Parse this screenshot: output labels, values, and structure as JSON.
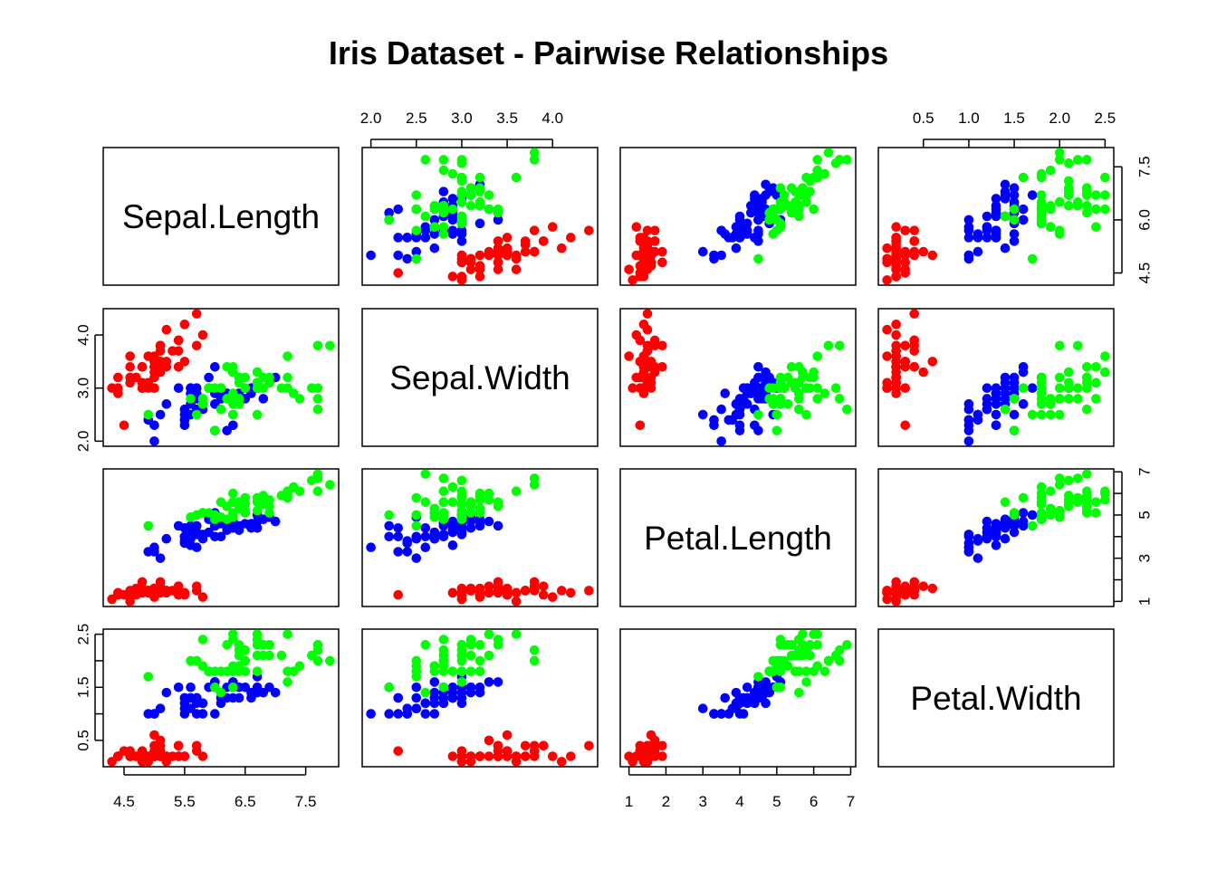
{
  "chart_data": {
    "type": "scatter",
    "title": "Iris Dataset - Pairwise Relationships",
    "variables": [
      "Sepal.Length",
      "Sepal.Width",
      "Petal.Length",
      "Petal.Width"
    ],
    "species_colors": {
      "setosa": "#ff0000",
      "versicolor": "#0000ff",
      "virginica": "#00ff00"
    },
    "axes": {
      "Sepal.Length": {
        "range": [
          4.3,
          7.9
        ],
        "ticks": [
          4.5,
          5.5,
          6.5,
          7.5
        ],
        "tick_labels": [
          "4.5",
          "5.5",
          "6.5",
          "7.5"
        ],
        "side_ticks": [
          4.5,
          6.0,
          7.5
        ],
        "side_tick_labels": [
          "4.5",
          "6.0",
          "7.5"
        ]
      },
      "Sepal.Width": {
        "range": [
          2.0,
          4.4
        ],
        "ticks": [
          2.0,
          2.5,
          3.0,
          3.5,
          4.0
        ],
        "tick_labels": [
          "2.0",
          "2.5",
          "3.0",
          "3.5",
          "4.0"
        ],
        "side_ticks": [
          2.0,
          3.0,
          4.0
        ],
        "side_tick_labels": [
          "2.0",
          "3.0",
          "4.0"
        ]
      },
      "Petal.Length": {
        "range": [
          1.0,
          6.9
        ],
        "ticks": [
          1,
          2,
          3,
          4,
          5,
          6,
          7
        ],
        "tick_labels": [
          "1",
          "2",
          "3",
          "4",
          "5",
          "6",
          "7"
        ],
        "side_ticks": [
          1,
          2,
          3,
          4,
          5,
          6,
          7
        ],
        "side_tick_labels": [
          "1",
          "",
          "3",
          "",
          "5",
          "",
          "7"
        ]
      },
      "Petal.Width": {
        "range": [
          0.1,
          2.5
        ],
        "ticks": [
          0.5,
          1.0,
          1.5,
          2.0,
          2.5
        ],
        "tick_labels": [
          "0.5",
          "1.0",
          "1.5",
          "2.0",
          "2.5"
        ],
        "side_ticks": [
          0.5,
          1.0,
          1.5,
          2.0,
          2.5
        ],
        "side_tick_labels": [
          "0.5",
          "",
          "1.5",
          "",
          "2.5"
        ]
      }
    },
    "observations": [
      [
        5.1,
        3.5,
        1.4,
        0.2,
        0
      ],
      [
        4.9,
        3.0,
        1.4,
        0.2,
        0
      ],
      [
        4.7,
        3.2,
        1.3,
        0.2,
        0
      ],
      [
        4.6,
        3.1,
        1.5,
        0.2,
        0
      ],
      [
        5.0,
        3.6,
        1.4,
        0.2,
        0
      ],
      [
        5.4,
        3.9,
        1.7,
        0.4,
        0
      ],
      [
        4.6,
        3.4,
        1.4,
        0.3,
        0
      ],
      [
        5.0,
        3.4,
        1.5,
        0.2,
        0
      ],
      [
        4.4,
        2.9,
        1.4,
        0.2,
        0
      ],
      [
        4.9,
        3.1,
        1.5,
        0.1,
        0
      ],
      [
        5.4,
        3.7,
        1.5,
        0.2,
        0
      ],
      [
        4.8,
        3.4,
        1.6,
        0.2,
        0
      ],
      [
        4.8,
        3.0,
        1.4,
        0.1,
        0
      ],
      [
        4.3,
        3.0,
        1.1,
        0.1,
        0
      ],
      [
        5.8,
        4.0,
        1.2,
        0.2,
        0
      ],
      [
        5.7,
        4.4,
        1.5,
        0.4,
        0
      ],
      [
        5.4,
        3.9,
        1.3,
        0.4,
        0
      ],
      [
        5.1,
        3.5,
        1.4,
        0.3,
        0
      ],
      [
        5.7,
        3.8,
        1.7,
        0.3,
        0
      ],
      [
        5.1,
        3.8,
        1.5,
        0.3,
        0
      ],
      [
        5.4,
        3.4,
        1.7,
        0.2,
        0
      ],
      [
        5.1,
        3.7,
        1.5,
        0.4,
        0
      ],
      [
        4.6,
        3.6,
        1.0,
        0.2,
        0
      ],
      [
        5.1,
        3.3,
        1.7,
        0.5,
        0
      ],
      [
        4.8,
        3.4,
        1.9,
        0.2,
        0
      ],
      [
        5.0,
        3.0,
        1.6,
        0.2,
        0
      ],
      [
        5.0,
        3.4,
        1.6,
        0.4,
        0
      ],
      [
        5.2,
        3.5,
        1.5,
        0.2,
        0
      ],
      [
        5.2,
        3.4,
        1.4,
        0.2,
        0
      ],
      [
        4.7,
        3.2,
        1.6,
        0.2,
        0
      ],
      [
        4.8,
        3.1,
        1.6,
        0.2,
        0
      ],
      [
        5.4,
        3.4,
        1.5,
        0.4,
        0
      ],
      [
        5.2,
        4.1,
        1.5,
        0.1,
        0
      ],
      [
        5.5,
        4.2,
        1.4,
        0.2,
        0
      ],
      [
        4.9,
        3.1,
        1.5,
        0.2,
        0
      ],
      [
        5.0,
        3.2,
        1.2,
        0.2,
        0
      ],
      [
        5.5,
        3.5,
        1.3,
        0.2,
        0
      ],
      [
        4.9,
        3.6,
        1.4,
        0.1,
        0
      ],
      [
        4.4,
        3.0,
        1.3,
        0.2,
        0
      ],
      [
        5.1,
        3.4,
        1.5,
        0.2,
        0
      ],
      [
        5.0,
        3.5,
        1.3,
        0.3,
        0
      ],
      [
        4.5,
        2.3,
        1.3,
        0.3,
        0
      ],
      [
        4.4,
        3.2,
        1.3,
        0.2,
        0
      ],
      [
        5.0,
        3.5,
        1.6,
        0.6,
        0
      ],
      [
        5.1,
        3.8,
        1.9,
        0.4,
        0
      ],
      [
        4.8,
        3.0,
        1.4,
        0.3,
        0
      ],
      [
        5.1,
        3.8,
        1.6,
        0.2,
        0
      ],
      [
        4.6,
        3.2,
        1.4,
        0.2,
        0
      ],
      [
        5.3,
        3.7,
        1.5,
        0.2,
        0
      ],
      [
        5.0,
        3.3,
        1.4,
        0.2,
        0
      ],
      [
        7.0,
        3.2,
        4.7,
        1.4,
        1
      ],
      [
        6.4,
        3.2,
        4.5,
        1.5,
        1
      ],
      [
        6.9,
        3.1,
        4.9,
        1.5,
        1
      ],
      [
        5.5,
        2.3,
        4.0,
        1.3,
        1
      ],
      [
        6.5,
        2.8,
        4.6,
        1.5,
        1
      ],
      [
        5.7,
        2.8,
        4.5,
        1.3,
        1
      ],
      [
        6.3,
        3.3,
        4.7,
        1.6,
        1
      ],
      [
        4.9,
        2.4,
        3.3,
        1.0,
        1
      ],
      [
        6.6,
        2.9,
        4.6,
        1.3,
        1
      ],
      [
        5.2,
        2.7,
        3.9,
        1.4,
        1
      ],
      [
        5.0,
        2.0,
        3.5,
        1.0,
        1
      ],
      [
        5.9,
        3.0,
        4.2,
        1.5,
        1
      ],
      [
        6.0,
        2.2,
        4.0,
        1.0,
        1
      ],
      [
        6.1,
        2.9,
        4.7,
        1.4,
        1
      ],
      [
        5.6,
        2.9,
        3.6,
        1.3,
        1
      ],
      [
        6.7,
        3.1,
        4.4,
        1.4,
        1
      ],
      [
        5.6,
        3.0,
        4.5,
        1.5,
        1
      ],
      [
        5.8,
        2.7,
        4.1,
        1.0,
        1
      ],
      [
        6.2,
        2.2,
        4.5,
        1.5,
        1
      ],
      [
        5.6,
        2.5,
        3.9,
        1.1,
        1
      ],
      [
        5.9,
        3.2,
        4.8,
        1.8,
        1
      ],
      [
        6.1,
        2.8,
        4.0,
        1.3,
        1
      ],
      [
        6.3,
        2.5,
        4.9,
        1.5,
        1
      ],
      [
        6.1,
        2.8,
        4.7,
        1.2,
        1
      ],
      [
        6.4,
        2.9,
        4.3,
        1.3,
        1
      ],
      [
        6.6,
        3.0,
        4.4,
        1.4,
        1
      ],
      [
        6.8,
        2.8,
        4.8,
        1.4,
        1
      ],
      [
        6.7,
        3.0,
        5.0,
        1.7,
        1
      ],
      [
        6.0,
        2.9,
        4.5,
        1.5,
        1
      ],
      [
        5.7,
        2.6,
        3.5,
        1.0,
        1
      ],
      [
        5.5,
        2.4,
        3.8,
        1.1,
        1
      ],
      [
        5.5,
        2.4,
        3.7,
        1.0,
        1
      ],
      [
        5.8,
        2.7,
        3.9,
        1.2,
        1
      ],
      [
        6.0,
        2.7,
        5.1,
        1.6,
        1
      ],
      [
        5.4,
        3.0,
        4.5,
        1.5,
        1
      ],
      [
        6.0,
        3.4,
        4.5,
        1.6,
        1
      ],
      [
        6.7,
        3.1,
        4.7,
        1.5,
        1
      ],
      [
        6.3,
        2.3,
        4.4,
        1.3,
        1
      ],
      [
        5.6,
        3.0,
        4.1,
        1.3,
        1
      ],
      [
        5.5,
        2.5,
        4.0,
        1.3,
        1
      ],
      [
        5.5,
        2.6,
        4.4,
        1.2,
        1
      ],
      [
        6.1,
        3.0,
        4.6,
        1.4,
        1
      ],
      [
        5.8,
        2.6,
        4.0,
        1.2,
        1
      ],
      [
        5.0,
        2.3,
        3.3,
        1.0,
        1
      ],
      [
        5.6,
        2.7,
        4.2,
        1.3,
        1
      ],
      [
        5.7,
        3.0,
        4.2,
        1.2,
        1
      ],
      [
        5.7,
        2.9,
        4.2,
        1.3,
        1
      ],
      [
        6.2,
        2.9,
        4.3,
        1.3,
        1
      ],
      [
        5.1,
        2.5,
        3.0,
        1.1,
        1
      ],
      [
        5.7,
        2.8,
        4.1,
        1.3,
        1
      ],
      [
        6.3,
        3.3,
        6.0,
        2.5,
        2
      ],
      [
        5.8,
        2.7,
        5.1,
        1.9,
        2
      ],
      [
        7.1,
        3.0,
        5.9,
        2.1,
        2
      ],
      [
        6.3,
        2.9,
        5.6,
        1.8,
        2
      ],
      [
        6.5,
        3.0,
        5.8,
        2.2,
        2
      ],
      [
        7.6,
        3.0,
        6.6,
        2.1,
        2
      ],
      [
        4.9,
        2.5,
        4.5,
        1.7,
        2
      ],
      [
        7.3,
        2.9,
        6.3,
        1.8,
        2
      ],
      [
        6.7,
        2.5,
        5.8,
        1.8,
        2
      ],
      [
        7.2,
        3.6,
        6.1,
        2.5,
        2
      ],
      [
        6.5,
        3.2,
        5.1,
        2.0,
        2
      ],
      [
        6.4,
        2.7,
        5.3,
        1.9,
        2
      ],
      [
        6.8,
        3.0,
        5.5,
        2.1,
        2
      ],
      [
        5.7,
        2.5,
        5.0,
        2.0,
        2
      ],
      [
        5.8,
        2.8,
        5.1,
        2.4,
        2
      ],
      [
        6.4,
        3.2,
        5.3,
        2.3,
        2
      ],
      [
        6.5,
        3.0,
        5.5,
        1.8,
        2
      ],
      [
        7.7,
        3.8,
        6.7,
        2.2,
        2
      ],
      [
        7.7,
        2.6,
        6.9,
        2.3,
        2
      ],
      [
        6.0,
        2.2,
        5.0,
        1.5,
        2
      ],
      [
        6.9,
        3.2,
        5.7,
        2.3,
        2
      ],
      [
        5.6,
        2.8,
        4.9,
        2.0,
        2
      ],
      [
        7.7,
        2.8,
        6.7,
        2.0,
        2
      ],
      [
        6.3,
        2.7,
        4.9,
        1.8,
        2
      ],
      [
        6.7,
        3.3,
        5.7,
        2.1,
        2
      ],
      [
        7.2,
        3.2,
        6.0,
        1.8,
        2
      ],
      [
        6.2,
        2.8,
        4.8,
        1.8,
        2
      ],
      [
        6.1,
        3.0,
        4.9,
        1.8,
        2
      ],
      [
        6.4,
        2.8,
        5.6,
        2.1,
        2
      ],
      [
        7.2,
        3.0,
        5.8,
        1.6,
        2
      ],
      [
        7.4,
        2.8,
        6.1,
        1.9,
        2
      ],
      [
        7.9,
        3.8,
        6.4,
        2.0,
        2
      ],
      [
        6.4,
        2.8,
        5.6,
        2.2,
        2
      ],
      [
        6.3,
        2.8,
        5.1,
        1.5,
        2
      ],
      [
        6.1,
        2.6,
        5.6,
        1.4,
        2
      ],
      [
        7.7,
        3.0,
        6.1,
        2.3,
        2
      ],
      [
        6.3,
        3.4,
        5.6,
        2.4,
        2
      ],
      [
        6.4,
        3.1,
        5.5,
        1.8,
        2
      ],
      [
        6.0,
        3.0,
        4.8,
        1.8,
        2
      ],
      [
        6.9,
        3.1,
        5.4,
        2.1,
        2
      ],
      [
        6.7,
        3.1,
        5.6,
        2.4,
        2
      ],
      [
        6.9,
        3.1,
        5.1,
        2.3,
        2
      ],
      [
        5.8,
        2.7,
        5.1,
        1.9,
        2
      ],
      [
        6.8,
        3.2,
        5.9,
        2.3,
        2
      ],
      [
        6.7,
        3.3,
        5.7,
        2.5,
        2
      ],
      [
        6.7,
        3.0,
        5.2,
        2.3,
        2
      ],
      [
        6.3,
        2.5,
        5.0,
        1.9,
        2
      ],
      [
        6.5,
        3.0,
        5.2,
        2.0,
        2
      ],
      [
        6.2,
        3.4,
        5.4,
        2.3,
        2
      ],
      [
        5.9,
        3.0,
        5.1,
        1.8,
        2
      ]
    ]
  }
}
